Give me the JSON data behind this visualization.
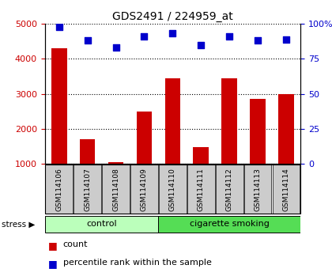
{
  "title": "GDS2491 / 224959_at",
  "samples": [
    "GSM114106",
    "GSM114107",
    "GSM114108",
    "GSM114109",
    "GSM114110",
    "GSM114111",
    "GSM114112",
    "GSM114113",
    "GSM114114"
  ],
  "counts": [
    4300,
    1700,
    1050,
    2500,
    3450,
    1480,
    3450,
    2850,
    3000
  ],
  "percentiles": [
    98,
    88,
    83,
    91,
    93,
    85,
    91,
    88,
    89
  ],
  "groups": [
    {
      "label": "control",
      "start": 0,
      "end": 4,
      "color": "#bbffbb"
    },
    {
      "label": "cigarette smoking",
      "start": 4,
      "end": 9,
      "color": "#55dd55"
    }
  ],
  "ylim_left": [
    1000,
    5000
  ],
  "ylim_right": [
    0,
    100
  ],
  "yticks_left": [
    1000,
    2000,
    3000,
    4000,
    5000
  ],
  "yticks_right": [
    0,
    25,
    50,
    75,
    100
  ],
  "bar_color": "#cc0000",
  "dot_color": "#0000cc",
  "bar_width": 0.55,
  "tick_label_area_color": "#cccccc",
  "stress_label": "stress",
  "legend_count_label": "count",
  "legend_pct_label": "percentile rank within the sample",
  "fig_width": 4.2,
  "fig_height": 3.54,
  "dpi": 100
}
